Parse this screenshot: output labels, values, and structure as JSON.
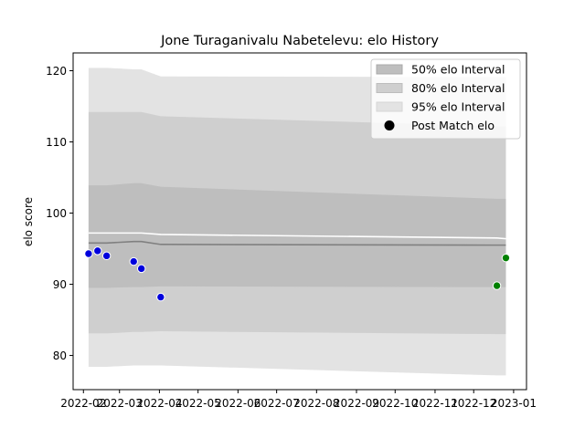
{
  "chart_data": {
    "type": "area",
    "title": "Jone Turaganivalu Nabetelevu: elo History",
    "xlabel": "",
    "ylabel": "elo score",
    "xlim": [
      "2022-01-24",
      "2023-01-11"
    ],
    "ylim": [
      75.2,
      122.5
    ],
    "yticks": [
      80,
      90,
      100,
      110,
      120
    ],
    "xticks": [
      "2022-02",
      "2022-03",
      "2022-04",
      "2022-05",
      "2022-06",
      "2022-07",
      "2022-08",
      "2022-09",
      "2022-10",
      "2022-11",
      "2022-12",
      "2023-01"
    ],
    "x": [
      "2022-02-05",
      "2022-02-12",
      "2022-02-19",
      "2022-03-12",
      "2022-03-18",
      "2022-04-02",
      "2022-12-19",
      "2022-12-26"
    ],
    "series": [
      {
        "name": "95% elo Interval",
        "upper": [
          120.4,
          120.4,
          120.4,
          120.2,
          120.2,
          119.2,
          119.1,
          119.1
        ],
        "lower": [
          78.4,
          78.4,
          78.4,
          78.6,
          78.6,
          78.6,
          77.2,
          77.2
        ]
      },
      {
        "name": "80% elo Interval",
        "upper": [
          114.2,
          114.2,
          114.2,
          114.2,
          114.2,
          113.6,
          112.2,
          112.2
        ],
        "lower": [
          83.1,
          83.1,
          83.1,
          83.3,
          83.3,
          83.4,
          83.0,
          83.0
        ]
      },
      {
        "name": "50% elo Interval",
        "upper": [
          103.9,
          103.9,
          103.9,
          104.2,
          104.2,
          103.7,
          102.0,
          102.0
        ],
        "lower": [
          89.5,
          89.5,
          89.5,
          89.6,
          89.6,
          89.7,
          89.6,
          89.6
        ]
      }
    ],
    "mean_line": [
      97.2,
      97.2,
      97.2,
      97.2,
      97.2,
      97.0,
      96.5,
      96.4
    ],
    "median_line": [
      95.8,
      95.8,
      95.8,
      96.0,
      96.0,
      95.6,
      95.5,
      95.5
    ],
    "post_match": {
      "name": "Post Match elo",
      "points": [
        {
          "x": "2022-02-05",
          "y": 94.3,
          "result": "loss"
        },
        {
          "x": "2022-02-12",
          "y": 94.7,
          "result": "loss"
        },
        {
          "x": "2022-02-19",
          "y": 94.0,
          "result": "loss"
        },
        {
          "x": "2022-03-12",
          "y": 93.2,
          "result": "loss"
        },
        {
          "x": "2022-03-18",
          "y": 92.2,
          "result": "loss"
        },
        {
          "x": "2022-04-02",
          "y": 88.2,
          "result": "loss"
        },
        {
          "x": "2022-12-19",
          "y": 89.8,
          "result": "win"
        },
        {
          "x": "2022-12-26",
          "y": 93.7,
          "result": "win"
        }
      ]
    },
    "legend": {
      "placement": "top-right",
      "entries": [
        "50% elo Interval",
        "80% elo Interval",
        "95% elo Interval",
        "Post Match elo"
      ]
    },
    "colors": {
      "band95": "#e3e3e3",
      "band80": "#cfcfcf",
      "band50": "#bebebe",
      "mean_line": "#ffffff",
      "median_line": "#808080",
      "loss": "#0000dd",
      "win": "#008000",
      "marker_edge": "#ffffff"
    },
    "grid": false
  }
}
